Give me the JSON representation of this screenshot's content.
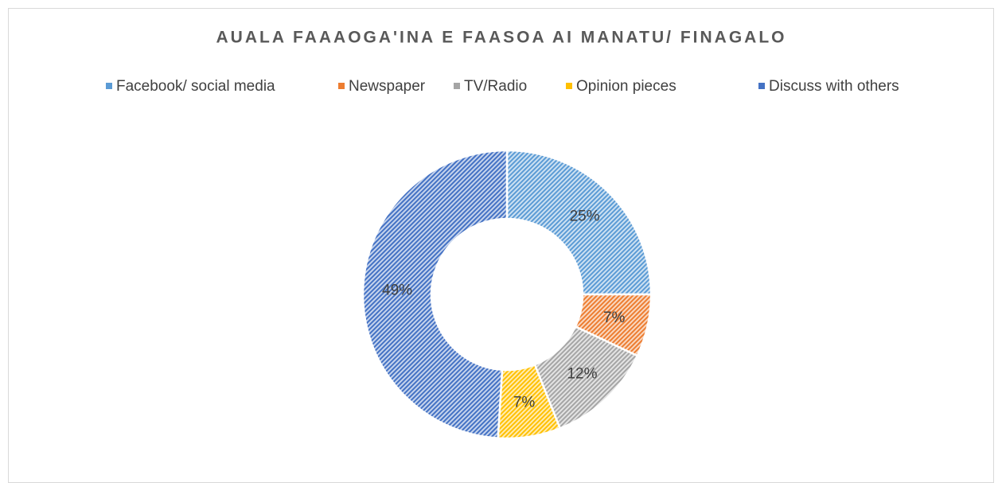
{
  "chart_data": {
    "type": "donut",
    "title": "AUALA FAAAOGA'INA E FAASOA AI MANATU/ FINAGALO",
    "categories": [
      "Facebook/ social media",
      "Newspaper",
      "TV/Radio",
      "Opinion pieces",
      "Discuss with others"
    ],
    "values": [
      25,
      7,
      12,
      7,
      49
    ],
    "value_labels": [
      "25%",
      "7%",
      "12%",
      "7%",
      "49%"
    ],
    "colors": [
      "#5b9bd5",
      "#ed7d31",
      "#a5a5a5",
      "#ffc000",
      "#4472c4"
    ],
    "legend": "top"
  }
}
